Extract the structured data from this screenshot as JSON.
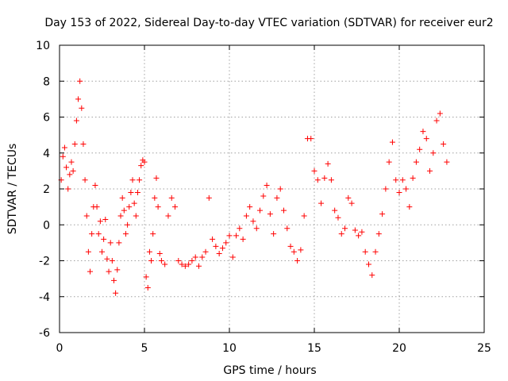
{
  "chart_data": {
    "type": "scatter",
    "title": "Day 153 of 2022, Sidereal Day-to-day VTEC variation (SDTVAR) for receiver eur2",
    "xlabel": "GPS time / hours",
    "ylabel": "SDTVAR / TECUs",
    "xlim": [
      0,
      25
    ],
    "ylim": [
      -6,
      10
    ],
    "xticks": [
      0,
      5,
      10,
      15,
      20,
      25
    ],
    "yticks": [
      -6,
      -4,
      -2,
      0,
      2,
      4,
      6,
      8,
      10
    ],
    "xtick_labels": [
      "0",
      "5",
      "10",
      "15",
      "20",
      "25"
    ],
    "ytick_labels": [
      "-6",
      "-4",
      "-2",
      "0",
      "2",
      "4",
      "6",
      "8",
      "10"
    ],
    "grid": true,
    "marker": "+",
    "color": "#ff0000",
    "series": [
      {
        "name": "SDTVAR",
        "x": [
          0.1,
          0.2,
          0.3,
          0.4,
          0.5,
          0.6,
          0.7,
          0.8,
          0.9,
          1.0,
          1.1,
          1.2,
          1.3,
          1.4,
          1.5,
          1.6,
          1.7,
          1.8,
          1.9,
          2.0,
          2.1,
          2.2,
          2.3,
          2.4,
          2.5,
          2.6,
          2.7,
          2.8,
          2.9,
          3.0,
          3.1,
          3.2,
          3.3,
          3.4,
          3.5,
          3.6,
          3.7,
          3.8,
          3.9,
          4.0,
          4.1,
          4.2,
          4.3,
          4.4,
          4.5,
          4.6,
          4.7,
          4.8,
          4.9,
          5.0,
          5.1,
          5.2,
          5.3,
          5.4,
          5.5,
          5.6,
          5.7,
          5.8,
          5.9,
          6.0,
          6.2,
          6.4,
          6.6,
          6.8,
          7.0,
          7.2,
          7.4,
          7.6,
          7.8,
          8.0,
          8.2,
          8.4,
          8.6,
          8.8,
          9.0,
          9.2,
          9.4,
          9.6,
          9.8,
          10.0,
          10.2,
          10.4,
          10.6,
          10.8,
          11.0,
          11.2,
          11.4,
          11.6,
          11.8,
          12.0,
          12.2,
          12.4,
          12.6,
          12.8,
          13.0,
          13.2,
          13.4,
          13.6,
          13.8,
          14.0,
          14.2,
          14.4,
          14.6,
          14.8,
          15.0,
          15.2,
          15.4,
          15.6,
          15.8,
          16.0,
          16.2,
          16.4,
          16.6,
          16.8,
          17.0,
          17.2,
          17.4,
          17.6,
          17.8,
          18.0,
          18.2,
          18.4,
          18.6,
          18.8,
          19.0,
          19.2,
          19.4,
          19.6,
          19.8,
          20.0,
          20.2,
          20.4,
          20.6,
          20.8,
          21.0,
          21.2,
          21.4,
          21.6,
          21.8,
          22.0,
          22.2,
          22.4,
          22.6,
          22.8
        ],
        "y": [
          2.5,
          3.8,
          4.3,
          3.2,
          2.0,
          2.8,
          3.5,
          3.0,
          4.5,
          5.8,
          7.0,
          8.0,
          6.5,
          4.5,
          2.5,
          0.5,
          -1.5,
          -2.6,
          -0.5,
          1.0,
          2.2,
          1.0,
          -0.5,
          0.2,
          -1.5,
          -0.8,
          0.3,
          -1.9,
          -2.6,
          -1.0,
          -2.0,
          -3.1,
          -3.8,
          -2.5,
          -1.0,
          0.5,
          1.5,
          0.8,
          -0.5,
          0.0,
          1.0,
          1.8,
          2.5,
          1.2,
          0.5,
          1.8,
          2.5,
          3.3,
          3.6,
          3.5,
          -2.9,
          -3.5,
          -1.5,
          -2.0,
          -0.5,
          1.5,
          2.6,
          1.0,
          -1.6,
          -2.0,
          -2.2,
          0.5,
          1.5,
          1.0,
          -2.0,
          -2.2,
          -2.3,
          -2.2,
          -2.0,
          -1.8,
          -2.3,
          -1.8,
          -1.5,
          1.5,
          -0.8,
          -1.2,
          -1.6,
          -1.3,
          -1.0,
          -0.6,
          -1.8,
          -0.6,
          -0.2,
          -0.8,
          0.5,
          1.0,
          0.2,
          -0.2,
          0.8,
          1.6,
          2.2,
          0.6,
          -0.5,
          1.5,
          2.0,
          0.8,
          -0.2,
          -1.2,
          -1.5,
          -2.0,
          -1.4,
          0.5,
          4.8,
          4.8,
          3.0,
          2.5,
          1.2,
          2.6,
          3.4,
          2.5,
          0.8,
          0.4,
          -0.5,
          -0.2,
          1.5,
          1.2,
          -0.3,
          -0.6,
          -0.4,
          -1.5,
          -2.2,
          -2.8,
          -1.5,
          -0.5,
          0.6,
          2.0,
          3.5,
          4.6,
          2.5,
          1.8,
          2.5,
          2.0,
          1.0,
          2.6,
          3.5,
          4.2,
          5.2,
          4.8,
          3.0,
          4.0,
          5.8,
          6.2,
          4.5,
          3.5
        ]
      }
    ]
  }
}
